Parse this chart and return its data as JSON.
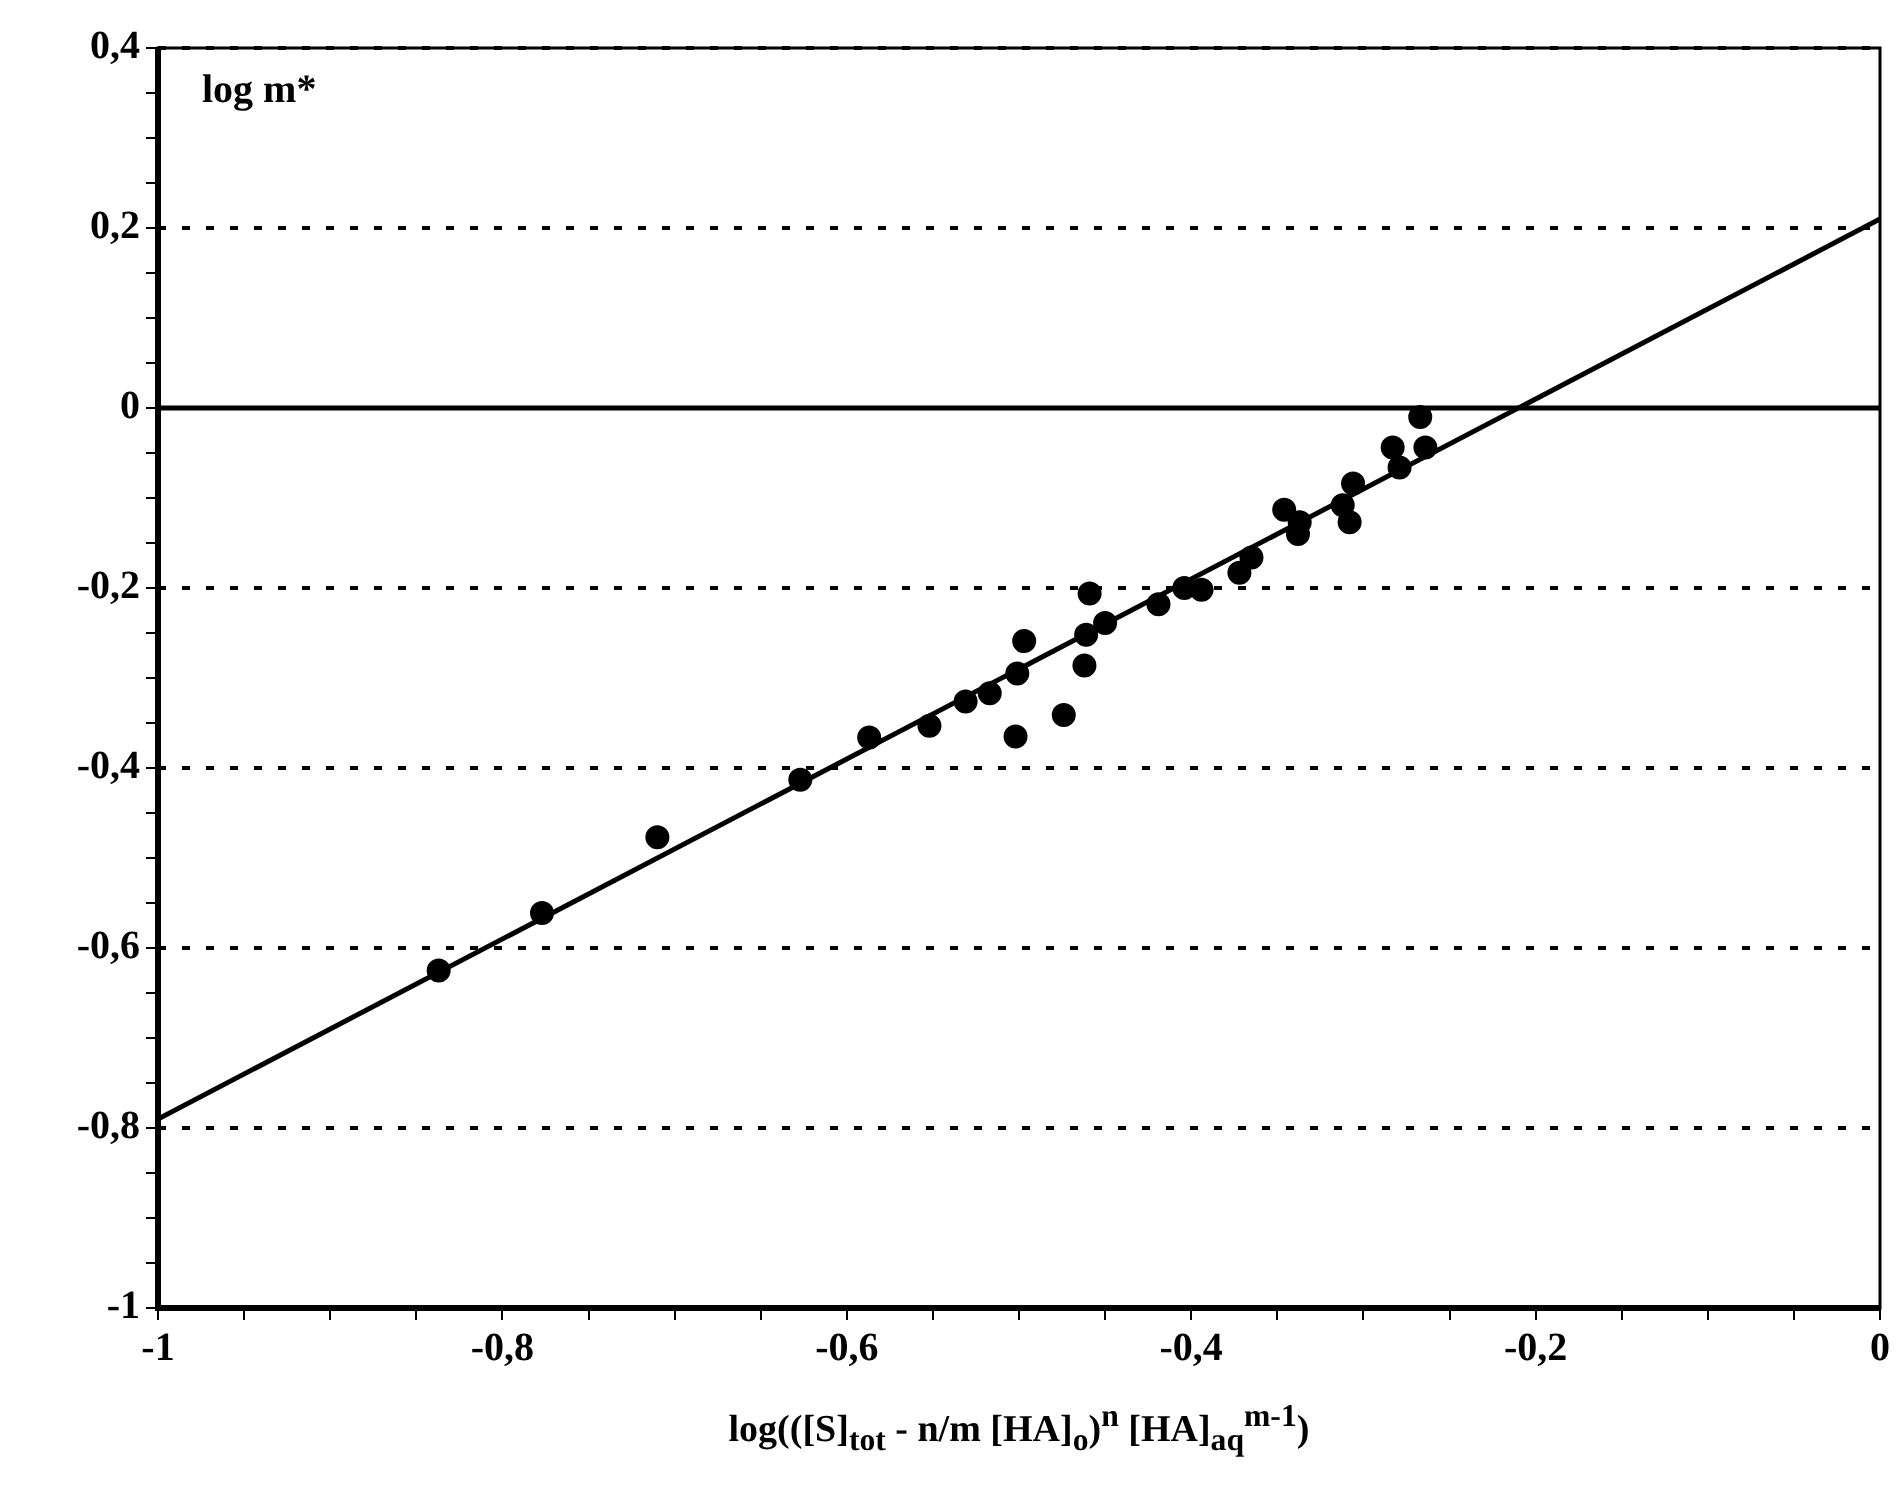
{
  "chart_data": {
    "type": "scatter",
    "ylabel": "log m*",
    "xlabel": "log(([S]$_{tot}$ - n/m [HA]$_{o}$)$^{n}$ [HA]$_{aq}$$^{m-1}$)",
    "xlim": [
      -1,
      0
    ],
    "ylim": [
      -1,
      0.4
    ],
    "xticks": [
      {
        "value": -1,
        "label": "-1"
      },
      {
        "value": -0.95,
        "label": null
      },
      {
        "value": -0.9,
        "label": null
      },
      {
        "value": -0.85,
        "label": null
      },
      {
        "value": -0.8,
        "label": "-0,8"
      },
      {
        "value": -0.75,
        "label": null
      },
      {
        "value": -0.7,
        "label": null
      },
      {
        "value": -0.65,
        "label": null
      },
      {
        "value": -0.6,
        "label": "-0,6"
      },
      {
        "value": -0.55,
        "label": null
      },
      {
        "value": -0.5,
        "label": null
      },
      {
        "value": -0.45,
        "label": null
      },
      {
        "value": -0.4,
        "label": "-0,4"
      },
      {
        "value": -0.35,
        "label": null
      },
      {
        "value": -0.3,
        "label": null
      },
      {
        "value": -0.25,
        "label": null
      },
      {
        "value": -0.2,
        "label": "-0,2"
      },
      {
        "value": -0.15,
        "label": null
      },
      {
        "value": -0.1,
        "label": null
      },
      {
        "value": -0.05,
        "label": null
      },
      {
        "value": 0,
        "label": "0"
      }
    ],
    "yticks": [
      {
        "value": -1,
        "label": "-1"
      },
      {
        "value": -0.95,
        "label": null
      },
      {
        "value": -0.9,
        "label": null
      },
      {
        "value": -0.85,
        "label": null
      },
      {
        "value": -0.8,
        "label": "-0,8"
      },
      {
        "value": -0.75,
        "label": null
      },
      {
        "value": -0.7,
        "label": null
      },
      {
        "value": -0.65,
        "label": null
      },
      {
        "value": -0.6,
        "label": "-0,6"
      },
      {
        "value": -0.55,
        "label": null
      },
      {
        "value": -0.5,
        "label": null
      },
      {
        "value": -0.45,
        "label": null
      },
      {
        "value": -0.4,
        "label": "-0,4"
      },
      {
        "value": -0.35,
        "label": null
      },
      {
        "value": -0.3,
        "label": null
      },
      {
        "value": -0.25,
        "label": null
      },
      {
        "value": -0.2,
        "label": "-0,2"
      },
      {
        "value": -0.15,
        "label": null
      },
      {
        "value": -0.1,
        "label": null
      },
      {
        "value": -0.05,
        "label": null
      },
      {
        "value": 0,
        "label": "0"
      },
      {
        "value": 0.05,
        "label": null
      },
      {
        "value": 0.1,
        "label": null
      },
      {
        "value": 0.15,
        "label": null
      },
      {
        "value": 0.2,
        "label": "0,2"
      },
      {
        "value": 0.25,
        "label": null
      },
      {
        "value": 0.3,
        "label": null
      },
      {
        "value": 0.35,
        "label": null
      },
      {
        "value": 0.4,
        "label": "0,4"
      }
    ],
    "grid": "y",
    "line_style": "dotted",
    "legend": false,
    "ref_lines": [
      {
        "axis": "y",
        "value": 0,
        "color": "#000000",
        "line_style": "solid"
      }
    ],
    "series": [
      {
        "type": "scatter",
        "color": "#000000",
        "marker": "circle",
        "x": [
          -0.837,
          -0.777,
          -0.71,
          -0.627,
          -0.587,
          -0.552,
          -0.531,
          -0.517,
          -0.501,
          -0.502,
          -0.497,
          -0.474,
          -0.462,
          -0.461,
          -0.459,
          -0.45,
          -0.419,
          -0.404,
          -0.394,
          -0.372,
          -0.365,
          -0.346,
          -0.338,
          -0.337,
          -0.308,
          -0.306,
          -0.312,
          -0.283,
          -0.279,
          -0.267,
          -0.264
        ],
        "values": [
          -0.625,
          -0.561,
          -0.477,
          -0.413,
          -0.366,
          -0.353,
          -0.326,
          -0.317,
          -0.295,
          -0.365,
          -0.259,
          -0.341,
          -0.286,
          -0.252,
          -0.206,
          -0.239,
          -0.218,
          -0.2,
          -0.202,
          -0.183,
          -0.166,
          -0.113,
          -0.14,
          -0.127,
          -0.127,
          -0.084,
          -0.108,
          -0.044,
          -0.066,
          -0.01,
          -0.044
        ]
      },
      {
        "type": "line",
        "color": "#000000",
        "marker": "none",
        "line_style": "solid",
        "x": [
          -1,
          0
        ],
        "values": [
          -0.79,
          0.21
        ]
      }
    ]
  }
}
